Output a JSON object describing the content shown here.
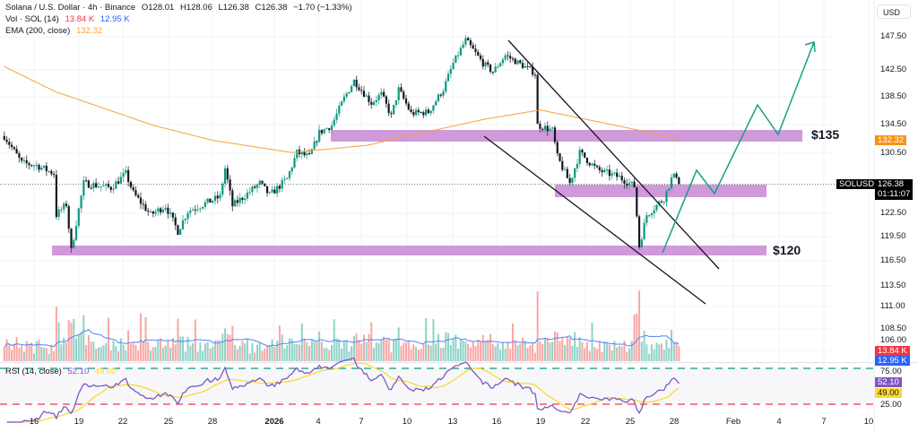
{
  "header": {
    "symbol_title": "Solana / U.S. Dollar · 4h · Binance",
    "open": "O128.01",
    "high": "H128.06",
    "low": "L126.38",
    "close": "C126.38",
    "change": "−1.70 (−1.33%)"
  },
  "volume_legend": {
    "label": "Vol · SOL (14)",
    "value": "13.84 K",
    "ma_value": "12.95 K"
  },
  "ema_legend": {
    "label": "EMA (200, close)",
    "value": "132.32"
  },
  "rsi_legend": {
    "label": "RSI (14, close)",
    "value": "52.10",
    "ma_value": "49.00"
  },
  "price_axis": {
    "currency": "USD",
    "ticks": [
      "147.50",
      "142.50",
      "138.50",
      "134.50",
      "130.50",
      "122.50",
      "119.50",
      "116.50",
      "113.50",
      "111.00",
      "108.50",
      "106.00"
    ],
    "rsi_ticks": [
      "75.00",
      "25.00"
    ],
    "ema_tag": "132.32",
    "symbol_tag": "SOLUSD",
    "last_price_tag": "126.38",
    "countdown": "01:11:07",
    "volume_tag": "13.84 K",
    "volume_ma_tag": "12.95 K",
    "rsi_tag": "52.10",
    "rsi_ma_tag": "49.00"
  },
  "time_axis": {
    "labels": [
      "16",
      "19",
      "22",
      "25",
      "28",
      "2026",
      "4",
      "7",
      "10",
      "13",
      "16",
      "19",
      "22",
      "25",
      "28",
      "Feb",
      "4",
      "7",
      "10"
    ]
  },
  "annotations": {
    "resistance_label": "$135",
    "support_label": "$120"
  },
  "colors": {
    "up": "#089981",
    "down": "#131722",
    "vol_up": "#8fd3c8",
    "vol_down": "#f7a7a5",
    "ema": "#f7a23a",
    "vol_ma": "#4f86f7",
    "rsi": "#7e57c2",
    "rsi_ma": "#fdd835",
    "zone": "#ce93d8",
    "projection": "#16a085"
  },
  "chart_data": {
    "type": "candlestick",
    "interval": "4h",
    "last_close": 126.38,
    "ema200_last": 132.32,
    "close_path": [
      [
        "2025-12-14T00:00",
        132.9
      ],
      [
        "2025-12-15T04:00",
        129.2
      ],
      [
        "2025-12-16T04:00",
        128.9
      ],
      [
        "2025-12-17T08:00",
        127.8
      ],
      [
        "2025-12-17T12:00",
        122.3
      ],
      [
        "2025-12-18T04:00",
        123.7
      ],
      [
        "2025-12-18T12:00",
        117.7
      ],
      [
        "2025-12-18T20:00",
        121.3
      ],
      [
        "2025-12-19T08:00",
        126.5
      ],
      [
        "2025-12-21T04:00",
        125.9
      ],
      [
        "2025-12-22T04:00",
        127.8
      ],
      [
        "2025-12-22T16:00",
        125.2
      ],
      [
        "2025-12-23T20:00",
        122.3
      ],
      [
        "2025-12-24T20:00",
        123.5
      ],
      [
        "2025-12-25T16:00",
        120.2
      ],
      [
        "2025-12-26T08:00",
        122.8
      ],
      [
        "2025-12-28T12:00",
        124.7
      ],
      [
        "2025-12-28T20:00",
        128.5
      ],
      [
        "2025-12-29T08:00",
        123.5
      ],
      [
        "2025-12-31T04:00",
        126.5
      ],
      [
        "2025-12-31T20:00",
        124.9
      ],
      [
        "2026-01-02T00:00",
        127.1
      ],
      [
        "2026-01-02T16:00",
        130.6
      ],
      [
        "2026-01-03T12:00",
        130.0
      ],
      [
        "2026-01-04T04:00",
        133.4
      ],
      [
        "2026-01-05T00:00",
        134.4
      ],
      [
        "2026-01-05T20:00",
        138.3
      ],
      [
        "2026-01-06T12:00",
        140.9
      ],
      [
        "2026-01-07T16:00",
        137.6
      ],
      [
        "2026-01-08T08:00",
        138.9
      ],
      [
        "2026-01-09T00:00",
        135.7
      ],
      [
        "2026-01-09T12:00",
        139.6
      ],
      [
        "2026-01-10T08:00",
        136.1
      ],
      [
        "2026-01-11T12:00",
        136.3
      ],
      [
        "2026-01-12T12:00",
        139.6
      ],
      [
        "2026-01-13T04:00",
        143.5
      ],
      [
        "2026-01-14T00:00",
        147.0
      ],
      [
        "2026-01-15T04:00",
        143.5
      ],
      [
        "2026-01-15T20:00",
        142.2
      ],
      [
        "2026-01-16T16:00",
        144.7
      ],
      [
        "2026-01-18T08:00",
        142.5
      ],
      [
        "2026-01-18T16:00",
        142.0
      ],
      [
        "2026-01-18T20:00",
        134.4
      ],
      [
        "2026-01-19T20:00",
        133.7
      ],
      [
        "2026-01-20T04:00",
        130.0
      ],
      [
        "2026-01-21T00:00",
        126.5
      ],
      [
        "2026-01-21T16:00",
        130.6
      ],
      [
        "2026-01-22T20:00",
        128.3
      ],
      [
        "2026-01-24T08:00",
        127.3
      ],
      [
        "2026-01-25T08:00",
        126.1
      ],
      [
        "2026-01-25T16:00",
        118.3
      ],
      [
        "2026-01-26T04:00",
        122.3
      ],
      [
        "2026-01-27T08:00",
        124.5
      ],
      [
        "2026-01-27T20:00",
        127.1
      ],
      [
        "2026-01-28T04:00",
        127.6
      ],
      [
        "2026-01-28T08:00",
        126.38
      ]
    ],
    "ema_path": [
      [
        "2025-12-14T00:00",
        143.0
      ],
      [
        "2025-12-17T12:00",
        139.2
      ],
      [
        "2025-12-24T00:00",
        134.4
      ],
      [
        "2025-12-28T00:00",
        132.3
      ],
      [
        "2026-01-02T08:00",
        130.6
      ],
      [
        "2026-01-07T08:00",
        131.6
      ],
      [
        "2026-01-15T08:00",
        135.3
      ],
      [
        "2026-01-19T00:00",
        136.6
      ],
      [
        "2026-01-25T16:00",
        133.7
      ],
      [
        "2026-01-28T08:00",
        132.32
      ]
    ],
    "zones": [
      {
        "label": "$135",
        "low": 133.4,
        "high": 135.2
      },
      {
        "label": "",
        "low": 124.3,
        "high": 126.3
      },
      {
        "label": "$120",
        "low": 117.6,
        "high": 119.0
      }
    ],
    "rsi_levels": [
      75,
      25
    ]
  }
}
